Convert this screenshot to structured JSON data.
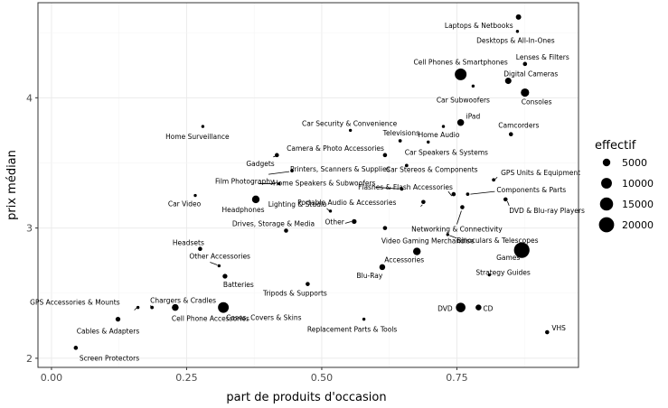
{
  "chart_data": {
    "type": "scatter",
    "xlabel": "part de produits d'occasion",
    "ylabel": "prix médian",
    "xlim": [
      -0.025,
      0.975
    ],
    "ylim": [
      1.93,
      4.73
    ],
    "x_ticks": [
      0.0,
      0.25,
      0.5,
      0.75
    ],
    "x_tick_labels": [
      "0.00",
      "0.25",
      "0.50",
      "0.75"
    ],
    "y_ticks": [
      2,
      3,
      4
    ],
    "y_tick_labels": [
      "2",
      "3",
      "4"
    ],
    "grid": true,
    "legend": {
      "title": "effectif",
      "placement": "right",
      "entries": [
        {
          "label": "5000",
          "value": 5000
        },
        {
          "label": "10000",
          "value": 10000
        },
        {
          "label": "15000",
          "value": 15000
        },
        {
          "label": "20000",
          "value": 20000
        }
      ]
    },
    "points": [
      {
        "label": "Laptops & Netbooks",
        "x": 0.864,
        "y": 4.62,
        "n": 2500
      },
      {
        "label": "Desktops & All-In-Ones",
        "x": 0.862,
        "y": 4.51,
        "n": 600
      },
      {
        "label": "Lenses & Filters",
        "x": 0.876,
        "y": 4.26,
        "n": 1500
      },
      {
        "label": "Cell Phones & Smartphones",
        "x": 0.757,
        "y": 4.18,
        "n": 12000
      },
      {
        "label": "Digital Cameras",
        "x": 0.845,
        "y": 4.13,
        "n": 3500
      },
      {
        "label": "Car Subwoofers",
        "x": 0.78,
        "y": 4.09,
        "n": 500
      },
      {
        "label": "Consoles",
        "x": 0.876,
        "y": 4.04,
        "n": 6000
      },
      {
        "label": "iPad",
        "x": 0.757,
        "y": 3.81,
        "n": 4000
      },
      {
        "label": "Camcorders",
        "x": 0.85,
        "y": 3.72,
        "n": 1500
      },
      {
        "label": "Home Audio",
        "x": 0.725,
        "y": 3.78,
        "n": 500
      },
      {
        "label": "Car Security & Convenience",
        "x": 0.553,
        "y": 3.75,
        "n": 500
      },
      {
        "label": "Home Surveillance",
        "x": 0.28,
        "y": 3.78,
        "n": 500
      },
      {
        "label": "Televisions",
        "x": 0.645,
        "y": 3.67,
        "n": 1000
      },
      {
        "label": "Car Speakers & Systems",
        "x": 0.697,
        "y": 3.66,
        "n": 500
      },
      {
        "label": "Camera & Photo Accessories",
        "x": 0.617,
        "y": 3.56,
        "n": 1500
      },
      {
        "label": "Gadgets",
        "x": 0.417,
        "y": 3.56,
        "n": 1500
      },
      {
        "label": "Car Stereos & Components",
        "x": 0.657,
        "y": 3.48,
        "n": 1000
      },
      {
        "label": "Printers, Scanners & Supplies",
        "x": 0.445,
        "y": 3.44,
        "n": 1000
      },
      {
        "label": "GPS Units & Equipment",
        "x": 0.818,
        "y": 3.37,
        "n": 1000
      },
      {
        "label": "Film Photography",
        "x": 0.421,
        "y": 3.34,
        "n": 500
      },
      {
        "label": "Home Speakers & Subwoofers",
        "x": 0.648,
        "y": 3.3,
        "n": 1000
      },
      {
        "label": "Flashes & Flash Accessories",
        "x": 0.744,
        "y": 3.26,
        "n": 1500
      },
      {
        "label": "Components & Parts",
        "x": 0.77,
        "y": 3.26,
        "n": 1000
      },
      {
        "label": "Car Video",
        "x": 0.266,
        "y": 3.25,
        "n": 500
      },
      {
        "label": "Headphones",
        "x": 0.378,
        "y": 3.22,
        "n": 5000
      },
      {
        "label": "Portable Audio & Accessories",
        "x": 0.688,
        "y": 3.2,
        "n": 1500
      },
      {
        "label": "DVD & Blu-ray Players",
        "x": 0.84,
        "y": 3.22,
        "n": 1500
      },
      {
        "label": "Lighting & Studio",
        "x": 0.516,
        "y": 3.13,
        "n": 500
      },
      {
        "label": "Networking & Connectivity",
        "x": 0.76,
        "y": 3.16,
        "n": 1500
      },
      {
        "label": "Drives, Storage & Media",
        "x": 0.434,
        "y": 2.98,
        "n": 1500
      },
      {
        "label": "Other",
        "x": 0.56,
        "y": 3.05,
        "n": 2000
      },
      {
        "label": "Video Gaming Merchandise",
        "x": 0.617,
        "y": 3.0,
        "n": 1500
      },
      {
        "label": "Binoculars & Telescopes",
        "x": 0.733,
        "y": 2.95,
        "n": 500
      },
      {
        "label": "Headsets",
        "x": 0.275,
        "y": 2.84,
        "n": 1500
      },
      {
        "label": "Games",
        "x": 0.87,
        "y": 2.83,
        "n": 21000
      },
      {
        "label": "Accessories",
        "x": 0.676,
        "y": 2.82,
        "n": 5000
      },
      {
        "label": "Other Accessories",
        "x": 0.31,
        "y": 2.71,
        "n": 500
      },
      {
        "label": "Blu-Ray",
        "x": 0.612,
        "y": 2.7,
        "n": 3000
      },
      {
        "label": "Batteries",
        "x": 0.321,
        "y": 2.63,
        "n": 2000
      },
      {
        "label": "Strategy Guides",
        "x": 0.81,
        "y": 2.64,
        "n": 500
      },
      {
        "label": "Tripods & Supports",
        "x": 0.474,
        "y": 2.57,
        "n": 1500
      },
      {
        "label": "GPS Accessories & Mounts",
        "x": 0.16,
        "y": 2.39,
        "n": 500
      },
      {
        "label": "Chargers & Cradles",
        "x": 0.186,
        "y": 2.39,
        "n": 1000
      },
      {
        "label": "Cell Phone Accessories",
        "x": 0.229,
        "y": 2.39,
        "n": 4000
      },
      {
        "label": "Cases, Covers & Skins",
        "x": 0.318,
        "y": 2.39,
        "n": 10000
      },
      {
        "label": "DVD",
        "x": 0.757,
        "y": 2.39,
        "n": 8000
      },
      {
        "label": "CD",
        "x": 0.79,
        "y": 2.39,
        "n": 3000
      },
      {
        "label": "Cables & Adapters",
        "x": 0.123,
        "y": 2.3,
        "n": 2000
      },
      {
        "label": "Replacement Parts & Tools",
        "x": 0.578,
        "y": 2.3,
        "n": 500
      },
      {
        "label": "VHS",
        "x": 0.917,
        "y": 2.2,
        "n": 1500
      },
      {
        "label": "Screen Protectors",
        "x": 0.045,
        "y": 2.08,
        "n": 1500
      }
    ]
  }
}
